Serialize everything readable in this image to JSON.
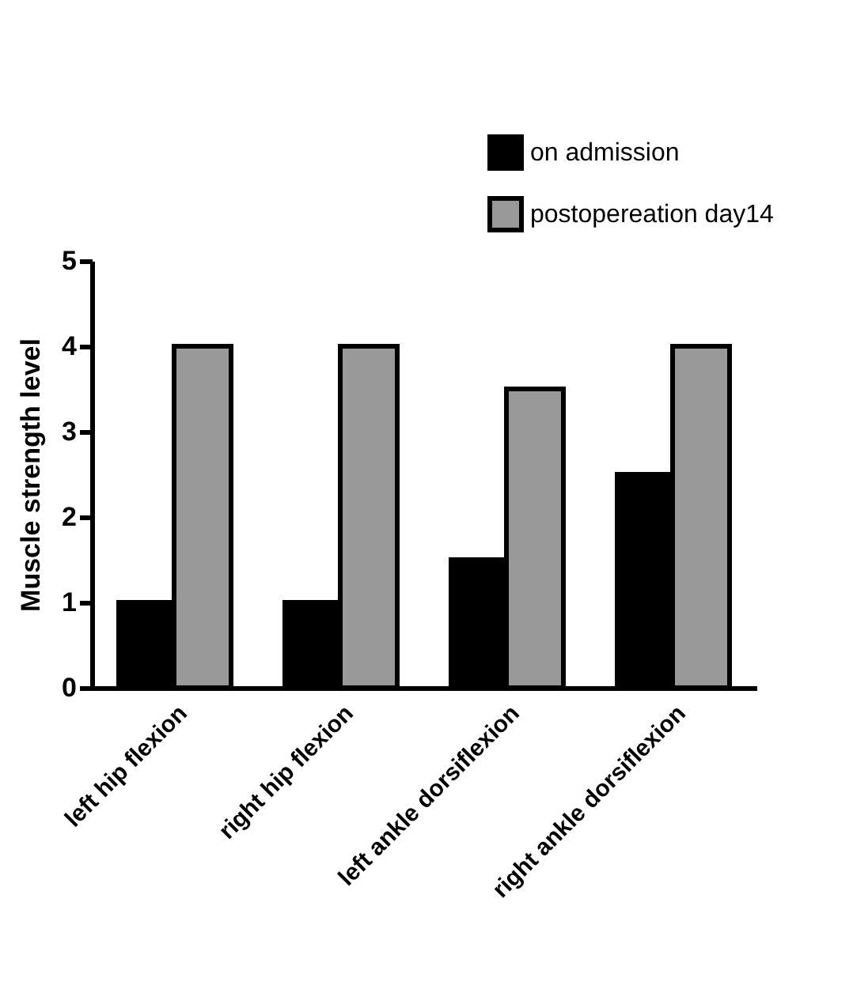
{
  "chart_data": {
    "type": "bar",
    "ylabel": "Muscle strength level",
    "categories": [
      "left hip flexion",
      "right hip flexion",
      "left ankle dorsiflexion",
      "right ankle dorsiflexion"
    ],
    "series": [
      {
        "name": "on admission",
        "color": "#000000",
        "values": [
          1,
          1,
          1.5,
          2.5
        ]
      },
      {
        "name": "postopereation day14",
        "color": "#999999",
        "values": [
          4,
          4,
          3.5,
          4
        ]
      }
    ],
    "ylim": [
      0,
      5
    ],
    "yticks": [
      0,
      1,
      2,
      3,
      4,
      5
    ],
    "grid": false,
    "legend": "top right"
  }
}
